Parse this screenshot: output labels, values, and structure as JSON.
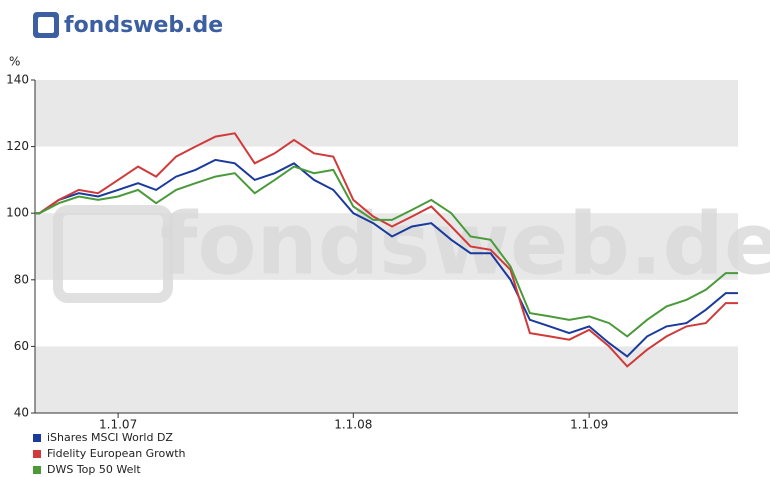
{
  "logo": "fondsweb.de",
  "chart_data": {
    "type": "line",
    "watermark": "fondsweb.de",
    "y_label": "%",
    "x": [
      "2006-08-25",
      "2006-09-01",
      "2006-10-01",
      "2006-11-01",
      "2006-12-01",
      "2007-01-01",
      "2007-02-01",
      "2007-03-01",
      "2007-04-01",
      "2007-05-01",
      "2007-06-01",
      "2007-07-01",
      "2007-08-01",
      "2007-09-01",
      "2007-10-01",
      "2007-11-01",
      "2007-12-01",
      "2008-01-01",
      "2008-02-01",
      "2008-03-01",
      "2008-04-01",
      "2008-05-01",
      "2008-06-01",
      "2008-07-01",
      "2008-08-01",
      "2008-09-01",
      "2008-10-01",
      "2008-11-01",
      "2008-12-01",
      "2009-01-01",
      "2009-02-01",
      "2009-03-01",
      "2009-04-01",
      "2009-05-01",
      "2009-06-01",
      "2009-07-01",
      "2009-08-01",
      "2009-08-20"
    ],
    "series": [
      {
        "name": "iShares MSCI World DZ",
        "color": "#1a3a9c",
        "values": [
          100,
          100,
          104,
          106,
          105,
          107,
          109,
          107,
          111,
          113,
          116,
          115,
          110,
          112,
          115,
          110,
          107,
          100,
          97,
          93,
          96,
          97,
          92,
          88,
          88,
          80,
          68,
          66,
          64,
          66,
          61,
          57,
          63,
          66,
          67,
          71,
          76,
          76
        ]
      },
      {
        "name": "Fidelity European Growth",
        "color": "#d03a3a",
        "values": [
          100,
          100,
          104,
          107,
          106,
          110,
          114,
          111,
          117,
          120,
          123,
          124,
          115,
          118,
          122,
          118,
          117,
          104,
          99,
          96,
          99,
          102,
          96,
          90,
          89,
          83,
          64,
          63,
          62,
          65,
          60,
          54,
          59,
          63,
          66,
          67,
          73,
          73
        ]
      },
      {
        "name": "DWS Top 50 Welt",
        "color": "#4a9a3a",
        "values": [
          100,
          100,
          103,
          105,
          104,
          105,
          107,
          103,
          107,
          109,
          111,
          112,
          106,
          110,
          114,
          112,
          113,
          102,
          98,
          98,
          101,
          104,
          100,
          93,
          92,
          84,
          70,
          69,
          68,
          69,
          67,
          63,
          68,
          72,
          74,
          77,
          82,
          82
        ]
      }
    ],
    "xlim": [
      "2006-08-25",
      "2009-08-20"
    ],
    "xticks": [
      {
        "value": "2007-01-01",
        "label": "1.1.07"
      },
      {
        "value": "2008-01-01",
        "label": "1.1.08"
      },
      {
        "value": "2009-01-01",
        "label": "1.1.09"
      }
    ],
    "ylim": [
      40,
      140
    ],
    "yticks": [
      40,
      60,
      80,
      100,
      120,
      140
    ],
    "grid_bands": true,
    "legend": "bottom-left"
  }
}
